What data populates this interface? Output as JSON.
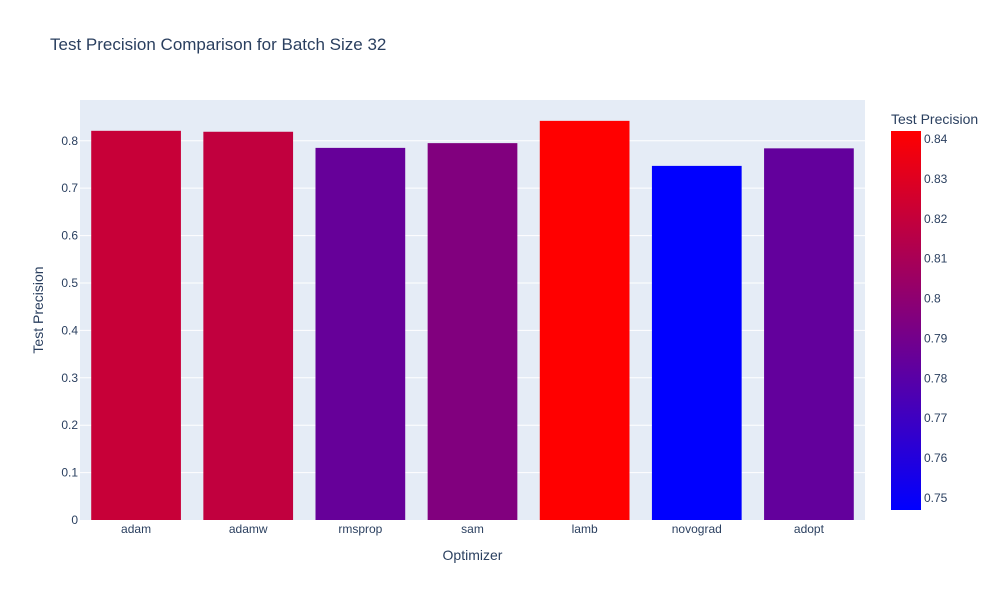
{
  "chart_data": {
    "type": "bar",
    "title": "Test Precision Comparison for Batch Size 32",
    "xlabel": "Optimizer",
    "ylabel": "Test Precision",
    "categories": [
      "adam",
      "adamw",
      "rmsprop",
      "sam",
      "lamb",
      "novograd",
      "adopt"
    ],
    "values": [
      0.821,
      0.819,
      0.785,
      0.795,
      0.842,
      0.747,
      0.784
    ],
    "ylim": [
      0,
      0.886
    ],
    "yticks": [
      "0",
      "0.1",
      "0.2",
      "0.3",
      "0.4",
      "0.5",
      "0.6",
      "0.7",
      "0.8"
    ],
    "grid": true,
    "colorbar": {
      "title": "Test Precision",
      "range": [
        0.747,
        0.842
      ],
      "ticks": [
        "0.75",
        "0.76",
        "0.77",
        "0.78",
        "0.79",
        "0.8",
        "0.81",
        "0.82",
        "0.83",
        "0.84"
      ],
      "colorscale": [
        "#0000ff",
        "#ff0000"
      ]
    },
    "plot_background": "#e5ecf6"
  }
}
